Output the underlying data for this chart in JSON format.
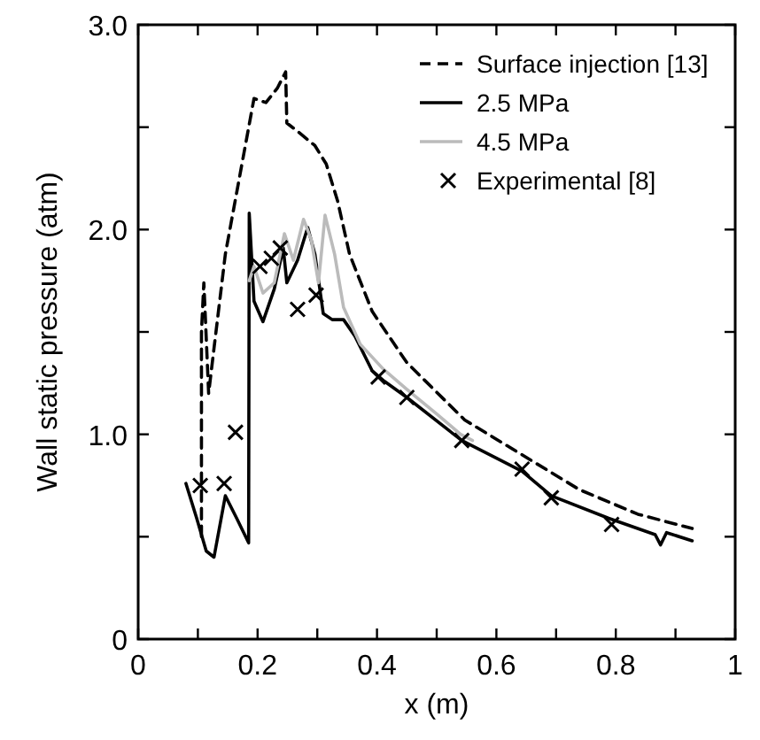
{
  "chart_data": {
    "type": "line",
    "xlabel": "x (m)",
    "ylabel": "Wall static pressure (atm)",
    "xlim": [
      0,
      1
    ],
    "ylim": [
      0,
      3
    ],
    "xticks": [
      0,
      {
        "value": 0.1,
        "label": null
      },
      {
        "value": 0.2,
        "label": "0.2"
      },
      {
        "value": 0.3,
        "label": null
      },
      {
        "value": 0.4,
        "label": "0.4"
      },
      {
        "value": 0.5,
        "label": null
      },
      {
        "value": 0.6,
        "label": "0.6"
      },
      {
        "value": 0.7,
        "label": null
      },
      {
        "value": 0.8,
        "label": "0.8"
      },
      {
        "value": 0.9,
        "label": null
      },
      1
    ],
    "yticks": [
      0,
      {
        "value": 0.5,
        "label": null
      },
      {
        "value": 1,
        "label": "1.0"
      },
      {
        "value": 1.5,
        "label": null
      },
      {
        "value": 2,
        "label": "2.0"
      },
      {
        "value": 2.5,
        "label": null
      },
      {
        "value": 3,
        "label": "3.0"
      }
    ],
    "legend": "top right",
    "series": [
      {
        "name": "Surface injection [13]",
        "color": "#000000",
        "line_style": "dashed",
        "x": [
          0.106,
          0.106,
          0.11,
          0.118,
          0.127,
          0.146,
          0.17,
          0.194,
          0.214,
          0.233,
          0.247,
          0.249,
          0.267,
          0.296,
          0.315,
          0.334,
          0.354,
          0.392,
          0.45,
          0.547,
          0.643,
          0.739,
          0.837,
          0.928
        ],
        "values": [
          0.5,
          1.5,
          1.74,
          1.2,
          1.42,
          1.88,
          2.26,
          2.64,
          2.62,
          2.69,
          2.77,
          2.52,
          2.48,
          2.41,
          2.32,
          2.14,
          1.88,
          1.6,
          1.35,
          1.07,
          0.9,
          0.73,
          0.61,
          0.54
        ]
      },
      {
        "name": "2.5 MPa",
        "color": "#000000",
        "line_style": "solid",
        "x": [
          0.08,
          0.098,
          0.114,
          0.127,
          0.146,
          0.165,
          0.185,
          0.186,
          0.194,
          0.209,
          0.228,
          0.243,
          0.249,
          0.267,
          0.284,
          0.296,
          0.31,
          0.325,
          0.344,
          0.363,
          0.392,
          0.412,
          0.45,
          0.542,
          0.643,
          0.692,
          0.788,
          0.866,
          0.875,
          0.885,
          0.928
        ],
        "values": [
          0.76,
          0.59,
          0.43,
          0.4,
          0.7,
          0.59,
          0.47,
          2.08,
          1.65,
          1.55,
          1.71,
          1.91,
          1.74,
          1.85,
          2.01,
          1.88,
          1.59,
          1.56,
          1.56,
          1.48,
          1.31,
          1.26,
          1.18,
          0.97,
          0.82,
          0.7,
          0.59,
          0.51,
          0.46,
          0.52,
          0.48
        ]
      },
      {
        "name": "4.5 MPa",
        "color": "#bbbbbb",
        "line_style": "solid",
        "x": [
          0.186,
          0.194,
          0.209,
          0.228,
          0.245,
          0.26,
          0.277,
          0.29,
          0.302,
          0.313,
          0.329,
          0.344,
          0.372,
          0.41,
          0.45,
          0.5,
          0.54,
          0.56
        ],
        "values": [
          1.75,
          1.82,
          1.69,
          1.74,
          1.98,
          1.85,
          2.05,
          1.95,
          1.74,
          2.07,
          1.88,
          1.62,
          1.44,
          1.32,
          1.22,
          1.1,
          1.0,
          0.97
        ]
      },
      {
        "name": "Experimental [8]",
        "type": "scatter",
        "marker": "cross",
        "color": "#000000",
        "x": [
          0.104,
          0.144,
          0.163,
          0.204,
          0.223,
          0.238,
          0.267,
          0.298,
          0.402,
          0.45,
          0.542,
          0.643,
          0.692,
          0.793
        ],
        "values": [
          0.75,
          0.76,
          1.01,
          1.82,
          1.86,
          1.91,
          1.61,
          1.68,
          1.28,
          1.18,
          0.97,
          0.83,
          0.69,
          0.56
        ]
      }
    ]
  }
}
